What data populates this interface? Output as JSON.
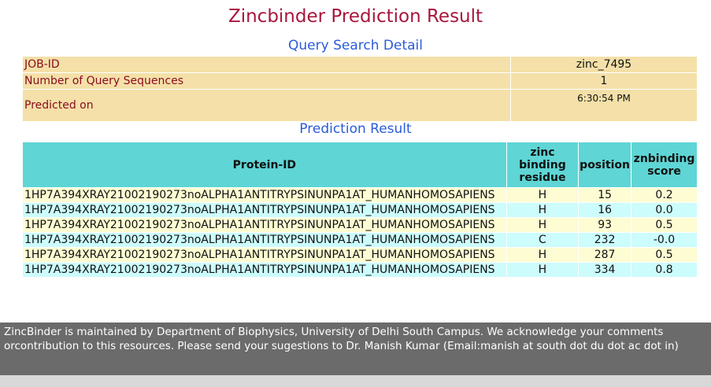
{
  "page": {
    "title": "Zincbinder Prediction Result",
    "query_heading": "Query Search Detail",
    "result_heading": "Prediction Result"
  },
  "query_detail": {
    "job_id_label": "JOB-ID",
    "job_id_value": "zinc_7495",
    "num_seq_label": "Number of Query Sequences",
    "num_seq_value": "1",
    "predicted_label": "Predicted on",
    "predicted_value": "6:30:54 PM"
  },
  "results": {
    "headers": {
      "protein_id": "Protein-ID",
      "residue_line1": "zinc",
      "residue_line2": "binding",
      "residue_line3": "residue",
      "position": "position",
      "score_line1": "znbinding",
      "score_line2": "score"
    },
    "rows": [
      {
        "protein": "1HP7A394XRAY21002190273noALPHA1ANTITRYPSINUNPA1AT_HUMANHOMOSAPIENS",
        "residue": "H",
        "position": "15",
        "score": "0.2"
      },
      {
        "protein": "1HP7A394XRAY21002190273noALPHA1ANTITRYPSINUNPA1AT_HUMANHOMOSAPIENS",
        "residue": "H",
        "position": "16",
        "score": "0.0"
      },
      {
        "protein": "1HP7A394XRAY21002190273noALPHA1ANTITRYPSINUNPA1AT_HUMANHOMOSAPIENS",
        "residue": "H",
        "position": "93",
        "score": "0.5"
      },
      {
        "protein": "1HP7A394XRAY21002190273noALPHA1ANTITRYPSINUNPA1AT_HUMANHOMOSAPIENS",
        "residue": "C",
        "position": "232",
        "score": "-0.0"
      },
      {
        "protein": "1HP7A394XRAY21002190273noALPHA1ANTITRYPSINUNPA1AT_HUMANHOMOSAPIENS",
        "residue": "H",
        "position": "287",
        "score": "0.5"
      },
      {
        "protein": "1HP7A394XRAY21002190273noALPHA1ANTITRYPSINUNPA1AT_HUMANHOMOSAPIENS",
        "residue": "H",
        "position": "334",
        "score": "0.8"
      }
    ]
  },
  "footer": {
    "text": "ZincBinder is maintained by Department of Biophysics, University of Delhi South Campus. We acknowledge your comments orcontribution to this resources. Please send your sugestions to Dr. Manish Kumar (Email:manish at south dot du dot ac dot in)"
  },
  "colors": {
    "title": "#a8163c",
    "heading": "#2a5bd8",
    "detail_bg": "#f4e0a8",
    "header_bg": "#5fd5d5",
    "row_even": "#fdfcd2",
    "row_odd": "#ccfcfc",
    "footer_bg": "#6b6b6b"
  }
}
